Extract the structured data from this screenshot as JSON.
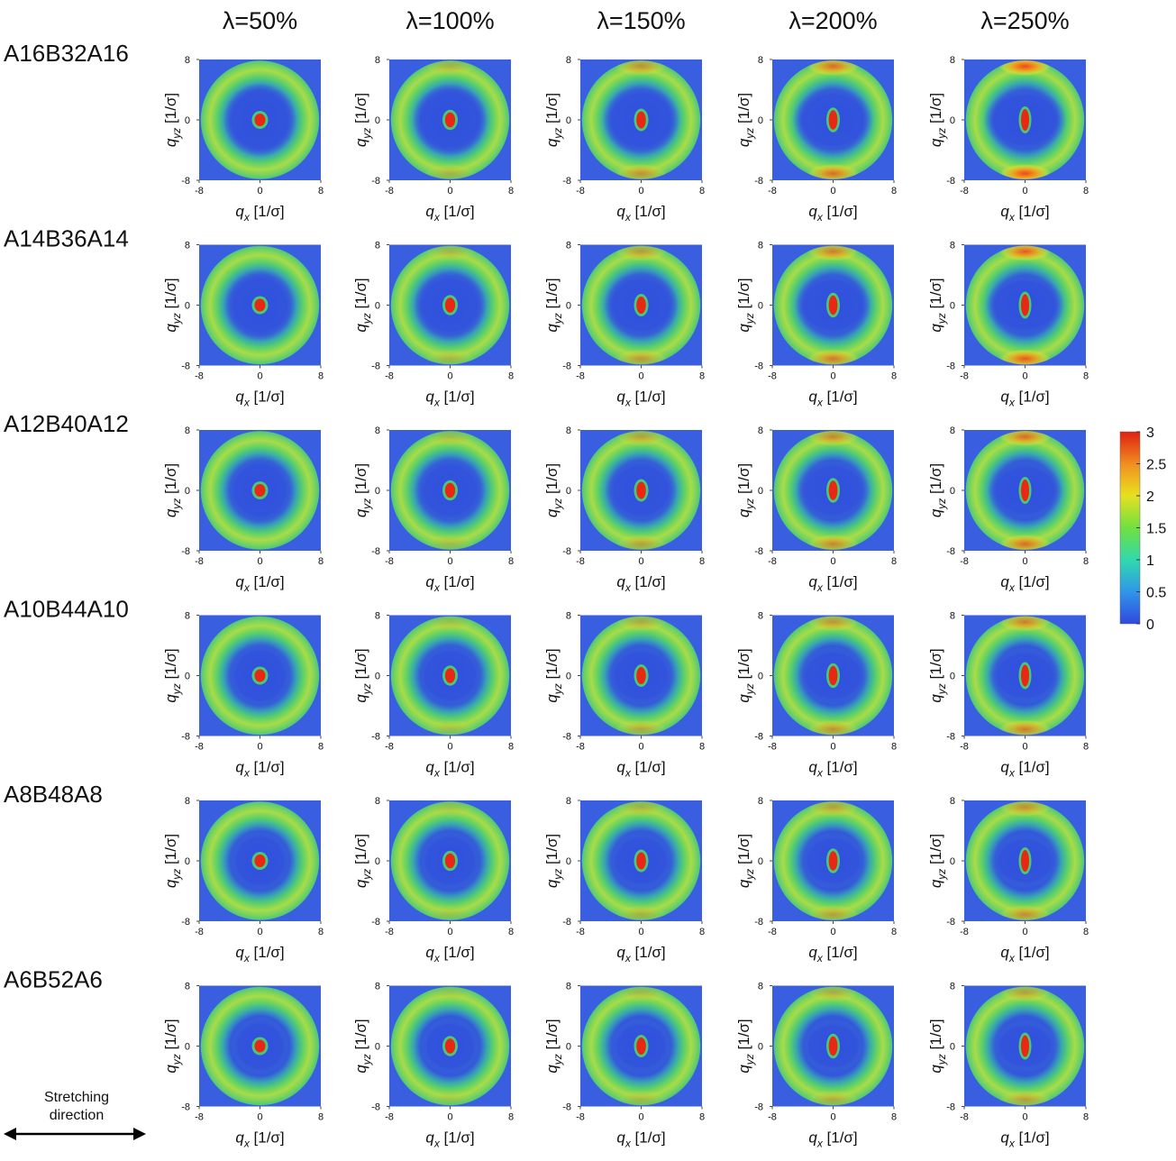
{
  "column_headers": [
    "λ=50%",
    "λ=100%",
    "λ=150%",
    "λ=200%",
    "λ=250%"
  ],
  "row_labels": [
    "A16B32A16",
    "A14B36A14",
    "A12B40A12",
    "A10B44A10",
    "A8B48A8",
    "A6B52A6"
  ],
  "panel_axes": {
    "x_label": {
      "symbol": "q",
      "subscript": "x",
      "unit": "[1/σ]"
    },
    "y_label": {
      "symbol": "q",
      "subscript": "yz",
      "unit": "[1/σ]"
    },
    "lim": [
      -8,
      8
    ],
    "ticks": [
      -8,
      0,
      8
    ]
  },
  "colorbar": {
    "lim": [
      0,
      3
    ],
    "ticks": [
      0,
      0.5,
      1,
      1.5,
      2,
      2.5,
      3
    ]
  },
  "annotation": [
    "Stretching",
    "direction"
  ]
}
